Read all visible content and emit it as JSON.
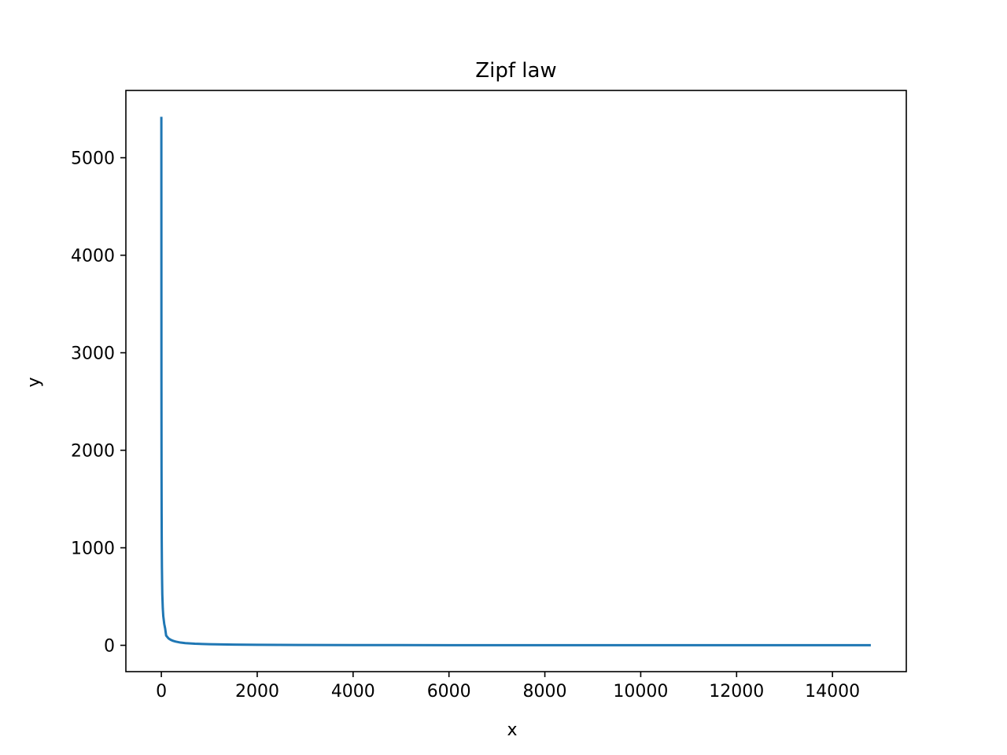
{
  "chart_data": {
    "type": "line",
    "title": "Zipf law",
    "xlabel": "x",
    "ylabel": "y",
    "xlim": [
      -740,
      15540
    ],
    "ylim": [
      -270,
      5690
    ],
    "xticks": [
      0,
      2000,
      4000,
      6000,
      8000,
      10000,
      12000,
      14000
    ],
    "yticks": [
      0,
      1000,
      2000,
      3000,
      4000,
      5000
    ],
    "grid": false,
    "legend": "none",
    "series": [
      {
        "color": "#1f77b4",
        "x": [
          0,
          2,
          4,
          6,
          8,
          12,
          16,
          20,
          30,
          40,
          60,
          80,
          100,
          150,
          200,
          250,
          300,
          400,
          500,
          700,
          1000,
          1500,
          2000,
          3000,
          4000,
          6000,
          8000,
          10000,
          12000,
          14000,
          14800
        ],
        "y": [
          5420,
          2700,
          1800,
          1350,
          1070,
          800,
          640,
          520,
          380,
          300,
          220,
          170,
          100,
          70,
          55,
          45,
          38,
          28,
          22,
          16,
          11,
          7,
          5,
          3.5,
          2.5,
          1.6,
          1.2,
          1,
          1,
          1,
          1
        ]
      }
    ]
  }
}
